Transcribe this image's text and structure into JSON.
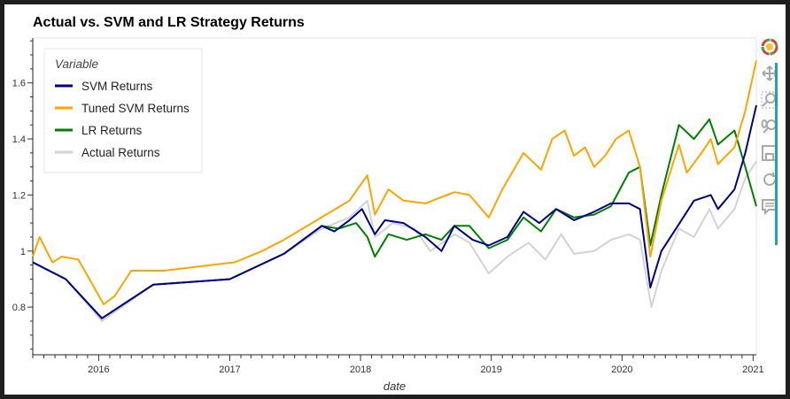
{
  "chart_data": {
    "type": "line",
    "title": "Actual vs. SVM and LR Strategy Returns",
    "xlabel": "date",
    "ylabel": "",
    "xlim": [
      "2015-07-01",
      "2021-01-10"
    ],
    "ylim": [
      0.63,
      1.76
    ],
    "x_ticks": [
      "2016",
      "2017",
      "2018",
      "2019",
      "2020",
      "2021"
    ],
    "y_ticks": [
      "0.8",
      "1",
      "1.2",
      "1.4",
      "1.6"
    ],
    "legend": {
      "title": "Variable",
      "position": "top-left"
    },
    "series": [
      {
        "name": "SVM Returns",
        "color": "#00008b",
        "points": [
          [
            "2015-07-01",
            0.96
          ],
          [
            "2015-10-01",
            0.9
          ],
          [
            "2016-01-10",
            0.76
          ],
          [
            "2016-06-01",
            0.88
          ],
          [
            "2017-01-01",
            0.9
          ],
          [
            "2017-06-01",
            0.99
          ],
          [
            "2017-09-15",
            1.09
          ],
          [
            "2017-10-20",
            1.07
          ],
          [
            "2017-12-01",
            1.11
          ],
          [
            "2018-01-05",
            1.15
          ],
          [
            "2018-02-10",
            1.06
          ],
          [
            "2018-03-10",
            1.11
          ],
          [
            "2018-05-01",
            1.1
          ],
          [
            "2018-07-01",
            1.05
          ],
          [
            "2018-08-15",
            1.0
          ],
          [
            "2018-09-20",
            1.09
          ],
          [
            "2018-11-10",
            1.04
          ],
          [
            "2018-12-25",
            1.02
          ],
          [
            "2019-02-15",
            1.05
          ],
          [
            "2019-04-01",
            1.14
          ],
          [
            "2019-05-15",
            1.1
          ],
          [
            "2019-07-01",
            1.15
          ],
          [
            "2019-08-20",
            1.11
          ],
          [
            "2019-10-15",
            1.14
          ],
          [
            "2019-12-01",
            1.17
          ],
          [
            "2020-01-20",
            1.17
          ],
          [
            "2020-02-20",
            1.15
          ],
          [
            "2020-03-20",
            0.87
          ],
          [
            "2020-04-20",
            1.0
          ],
          [
            "2020-06-10",
            1.1
          ],
          [
            "2020-07-20",
            1.18
          ],
          [
            "2020-09-05",
            1.2
          ],
          [
            "2020-09-25",
            1.15
          ],
          [
            "2020-11-10",
            1.22
          ],
          [
            "2020-12-10",
            1.35
          ],
          [
            "2021-01-10",
            1.52
          ]
        ]
      },
      {
        "name": "Tuned SVM Returns",
        "color": "#ffa500",
        "points": [
          [
            "2015-07-01",
            0.98
          ],
          [
            "2015-07-20",
            1.05
          ],
          [
            "2015-08-25",
            0.96
          ],
          [
            "2015-09-20",
            0.98
          ],
          [
            "2015-11-05",
            0.97
          ],
          [
            "2016-01-15",
            0.81
          ],
          [
            "2016-02-15",
            0.84
          ],
          [
            "2016-04-01",
            0.93
          ],
          [
            "2016-07-01",
            0.93
          ],
          [
            "2016-11-10",
            0.95
          ],
          [
            "2017-01-15",
            0.96
          ],
          [
            "2017-04-01",
            1.0
          ],
          [
            "2017-06-01",
            1.04
          ],
          [
            "2017-09-01",
            1.11
          ],
          [
            "2017-12-01",
            1.18
          ],
          [
            "2018-01-20",
            1.27
          ],
          [
            "2018-02-10",
            1.13
          ],
          [
            "2018-03-20",
            1.22
          ],
          [
            "2018-05-01",
            1.18
          ],
          [
            "2018-07-01",
            1.17
          ],
          [
            "2018-09-20",
            1.21
          ],
          [
            "2018-11-01",
            1.2
          ],
          [
            "2018-12-25",
            1.12
          ],
          [
            "2019-02-01",
            1.22
          ],
          [
            "2019-04-01",
            1.35
          ],
          [
            "2019-05-20",
            1.29
          ],
          [
            "2019-06-20",
            1.4
          ],
          [
            "2019-07-25",
            1.43
          ],
          [
            "2019-08-20",
            1.34
          ],
          [
            "2019-09-20",
            1.37
          ],
          [
            "2019-10-15",
            1.3
          ],
          [
            "2019-11-15",
            1.34
          ],
          [
            "2019-12-15",
            1.4
          ],
          [
            "2020-01-20",
            1.43
          ],
          [
            "2020-02-20",
            1.3
          ],
          [
            "2020-03-20",
            0.98
          ],
          [
            "2020-04-20",
            1.18
          ],
          [
            "2020-06-08",
            1.38
          ],
          [
            "2020-06-30",
            1.28
          ],
          [
            "2020-08-10",
            1.35
          ],
          [
            "2020-09-05",
            1.4
          ],
          [
            "2020-09-25",
            1.31
          ],
          [
            "2020-11-10",
            1.37
          ],
          [
            "2020-12-10",
            1.5
          ],
          [
            "2021-01-10",
            1.68
          ]
        ]
      },
      {
        "name": "LR Returns",
        "color": "#008000",
        "points": [
          [
            "2015-07-01",
            0.96
          ],
          [
            "2015-10-01",
            0.9
          ],
          [
            "2016-01-10",
            0.76
          ],
          [
            "2016-06-01",
            0.88
          ],
          [
            "2017-01-01",
            0.9
          ],
          [
            "2017-06-01",
            0.99
          ],
          [
            "2017-09-15",
            1.09
          ],
          [
            "2017-11-01",
            1.08
          ],
          [
            "2017-12-20",
            1.1
          ],
          [
            "2018-01-20",
            1.05
          ],
          [
            "2018-02-10",
            0.98
          ],
          [
            "2018-03-20",
            1.06
          ],
          [
            "2018-05-10",
            1.04
          ],
          [
            "2018-07-01",
            1.06
          ],
          [
            "2018-08-15",
            1.04
          ],
          [
            "2018-09-20",
            1.09
          ],
          [
            "2018-11-01",
            1.09
          ],
          [
            "2018-12-25",
            1.01
          ],
          [
            "2019-02-15",
            1.04
          ],
          [
            "2019-04-01",
            1.12
          ],
          [
            "2019-05-20",
            1.07
          ],
          [
            "2019-07-01",
            1.15
          ],
          [
            "2019-08-20",
            1.12
          ],
          [
            "2019-10-15",
            1.13
          ],
          [
            "2019-12-01",
            1.16
          ],
          [
            "2020-01-20",
            1.28
          ],
          [
            "2020-02-20",
            1.3
          ],
          [
            "2020-03-20",
            1.02
          ],
          [
            "2020-04-20",
            1.2
          ],
          [
            "2020-06-08",
            1.45
          ],
          [
            "2020-07-20",
            1.4
          ],
          [
            "2020-09-01",
            1.47
          ],
          [
            "2020-09-25",
            1.38
          ],
          [
            "2020-11-10",
            1.43
          ],
          [
            "2020-12-10",
            1.3
          ],
          [
            "2021-01-10",
            1.16
          ]
        ]
      },
      {
        "name": "Actual Returns",
        "color": "#d3d3d3",
        "points": [
          [
            "2015-07-01",
            0.96
          ],
          [
            "2015-10-01",
            0.9
          ],
          [
            "2016-01-10",
            0.75
          ],
          [
            "2016-06-01",
            0.88
          ],
          [
            "2017-01-01",
            0.9
          ],
          [
            "2017-06-01",
            0.99
          ],
          [
            "2017-09-15",
            1.08
          ],
          [
            "2017-12-01",
            1.12
          ],
          [
            "2018-01-20",
            1.18
          ],
          [
            "2018-02-10",
            1.05
          ],
          [
            "2018-04-01",
            1.1
          ],
          [
            "2018-06-01",
            1.08
          ],
          [
            "2018-07-15",
            1.0
          ],
          [
            "2018-09-20",
            1.06
          ],
          [
            "2018-11-01",
            1.03
          ],
          [
            "2018-12-25",
            0.92
          ],
          [
            "2019-02-15",
            0.98
          ],
          [
            "2019-04-15",
            1.03
          ],
          [
            "2019-06-01",
            0.97
          ],
          [
            "2019-07-15",
            1.06
          ],
          [
            "2019-08-20",
            0.99
          ],
          [
            "2019-10-15",
            1.0
          ],
          [
            "2019-12-01",
            1.04
          ],
          [
            "2020-01-20",
            1.06
          ],
          [
            "2020-02-20",
            1.04
          ],
          [
            "2020-03-23",
            0.8
          ],
          [
            "2020-04-20",
            0.93
          ],
          [
            "2020-06-08",
            1.08
          ],
          [
            "2020-07-20",
            1.05
          ],
          [
            "2020-09-01",
            1.15
          ],
          [
            "2020-09-25",
            1.08
          ],
          [
            "2020-11-10",
            1.15
          ],
          [
            "2020-12-10",
            1.26
          ],
          [
            "2021-01-10",
            1.32
          ]
        ]
      }
    ]
  },
  "toolbar": {
    "tools": [
      {
        "name": "bokeh-logo-icon"
      },
      {
        "name": "pan-icon"
      },
      {
        "name": "box-zoom-icon"
      },
      {
        "name": "wheel-zoom-icon"
      },
      {
        "name": "save-icon"
      },
      {
        "name": "reset-icon"
      },
      {
        "name": "hover-icon"
      }
    ]
  }
}
